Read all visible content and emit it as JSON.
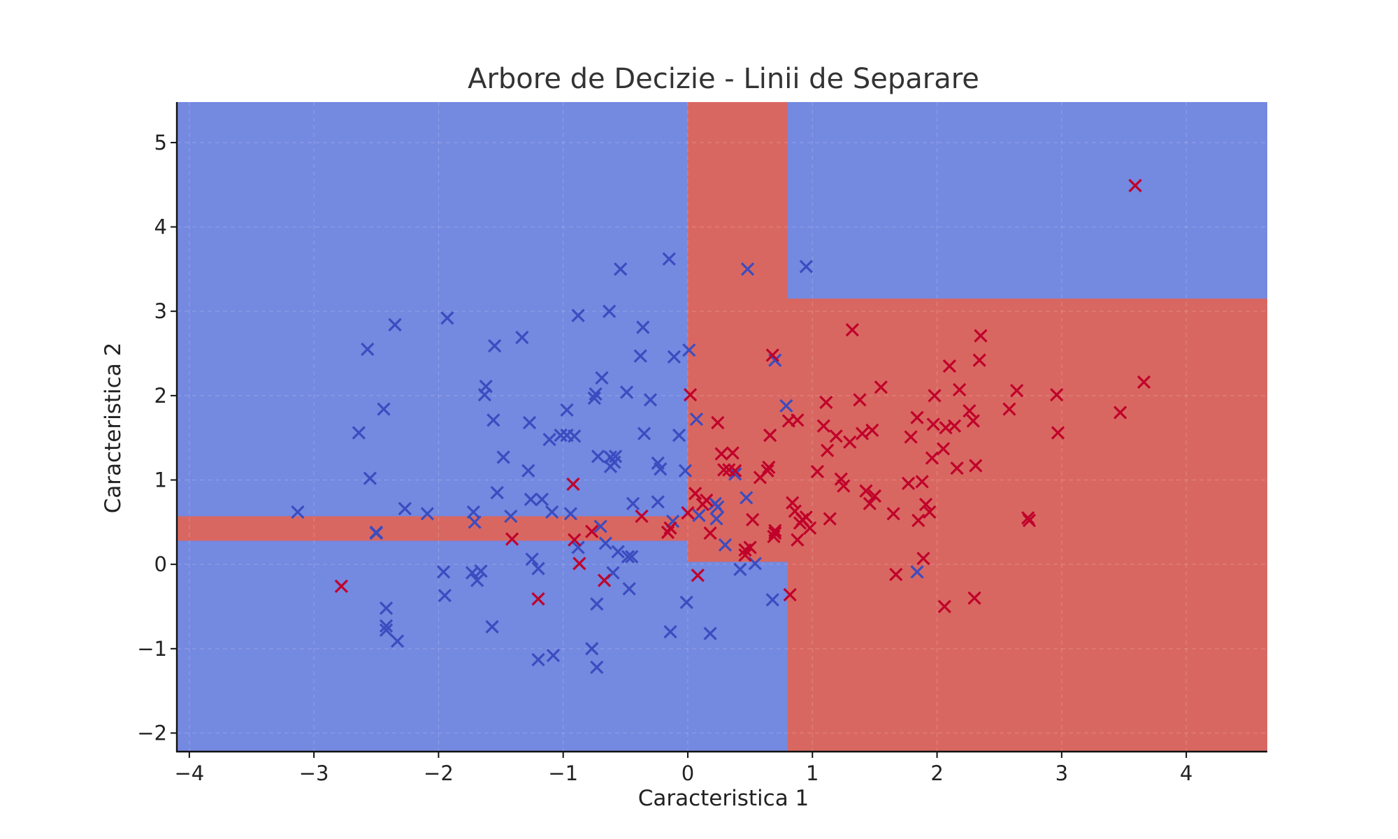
{
  "chart_data": {
    "type": "scatter",
    "title": "Arbore de Decizie - Linii de Separare",
    "xlabel": "Caracteristica 1",
    "ylabel": "Caracteristica 2",
    "xlim": [
      -4.1,
      4.65
    ],
    "ylim": [
      -2.22,
      5.48
    ],
    "x_ticks": [
      -4,
      -3,
      -2,
      -1,
      0,
      1,
      2,
      3,
      4
    ],
    "y_ticks": [
      -2,
      -1,
      0,
      1,
      2,
      3,
      4,
      5
    ],
    "x_tick_labels": [
      "−4",
      "−3",
      "−2",
      "−1",
      "0",
      "1",
      "2",
      "3",
      "4"
    ],
    "y_tick_labels": [
      "−2",
      "−1",
      "0",
      "1",
      "2",
      "3",
      "4",
      "5"
    ],
    "grid": true,
    "marker": "x",
    "colors": {
      "region_class_0": "#7489e0",
      "region_class_1": "#d96761",
      "points_class_0": "#3b4cc0",
      "points_class_1": "#c0002a"
    },
    "regions_class_1": [
      {
        "x": [
          0.0,
          0.8
        ],
        "y": [
          0.03,
          5.48
        ]
      },
      {
        "x": [
          0.8,
          4.65
        ],
        "y": [
          -2.22,
          3.15
        ]
      },
      {
        "x": [
          -4.1,
          0.0
        ],
        "y": [
          0.28,
          0.57
        ]
      }
    ],
    "series": [
      {
        "class": 0,
        "points": [
          [
            -3.13,
            0.62
          ],
          [
            -2.64,
            1.56
          ],
          [
            -2.57,
            2.55
          ],
          [
            -2.55,
            1.02
          ],
          [
            -2.5,
            0.37
          ],
          [
            -2.5,
            0.38
          ],
          [
            -2.44,
            1.84
          ],
          [
            -2.42,
            -0.52
          ],
          [
            -2.42,
            -0.73
          ],
          [
            -2.42,
            -0.78
          ],
          [
            -2.35,
            2.84
          ],
          [
            -2.33,
            -0.91
          ],
          [
            -2.27,
            0.66
          ],
          [
            -2.09,
            0.6
          ],
          [
            -1.96,
            -0.09
          ],
          [
            -1.95,
            -0.37
          ],
          [
            -1.93,
            2.92
          ],
          [
            -1.73,
            -0.1
          ],
          [
            -1.72,
            0.62
          ],
          [
            -1.71,
            0.5
          ],
          [
            -1.69,
            -0.19
          ],
          [
            -1.66,
            -0.08
          ],
          [
            -1.63,
            2.01
          ],
          [
            -1.62,
            2.11
          ],
          [
            -1.57,
            -0.74
          ],
          [
            -1.56,
            1.71
          ],
          [
            -1.55,
            2.59
          ],
          [
            -1.53,
            0.85
          ],
          [
            -1.48,
            1.27
          ],
          [
            -1.42,
            0.57
          ],
          [
            -1.33,
            2.69
          ],
          [
            -1.28,
            1.11
          ],
          [
            -1.27,
            1.68
          ],
          [
            -1.26,
            0.77
          ],
          [
            -1.25,
            0.06
          ],
          [
            -1.2,
            -0.05
          ],
          [
            -1.2,
            -1.13
          ],
          [
            -1.17,
            0.77
          ],
          [
            -1.11,
            1.48
          ],
          [
            -1.09,
            0.62
          ],
          [
            -1.08,
            -1.08
          ],
          [
            -1.02,
            1.53
          ],
          [
            -0.97,
            1.83
          ],
          [
            -0.97,
            1.53
          ],
          [
            -0.94,
            0.6
          ],
          [
            -0.91,
            1.52
          ],
          [
            -0.88,
            2.95
          ],
          [
            -0.88,
            0.2
          ],
          [
            -0.77,
            -1.0
          ],
          [
            -0.75,
            1.97
          ],
          [
            -0.74,
            2.02
          ],
          [
            -0.73,
            -0.47
          ],
          [
            -0.73,
            -1.22
          ],
          [
            -0.72,
            1.28
          ],
          [
            -0.7,
            0.45
          ],
          [
            -0.69,
            2.21
          ],
          [
            -0.66,
            0.25
          ],
          [
            -0.63,
            3.0
          ],
          [
            -0.62,
            1.16
          ],
          [
            -0.62,
            1.27
          ],
          [
            -0.6,
            -0.1
          ],
          [
            -0.59,
            1.21
          ],
          [
            -0.58,
            1.28
          ],
          [
            -0.56,
            0.15
          ],
          [
            -0.54,
            3.5
          ],
          [
            -0.49,
            2.04
          ],
          [
            -0.48,
            0.09
          ],
          [
            -0.47,
            -0.29
          ],
          [
            -0.45,
            0.09
          ],
          [
            -0.44,
            0.72
          ],
          [
            -0.38,
            2.47
          ],
          [
            -0.36,
            2.81
          ],
          [
            -0.35,
            1.55
          ],
          [
            -0.3,
            1.95
          ],
          [
            -0.24,
            1.2
          ],
          [
            -0.24,
            0.74
          ],
          [
            -0.22,
            1.13
          ],
          [
            -0.15,
            3.62
          ],
          [
            -0.14,
            -0.8
          ],
          [
            -0.12,
            0.51
          ],
          [
            -0.11,
            2.46
          ],
          [
            -0.07,
            1.53
          ],
          [
            -0.02,
            1.11
          ],
          [
            -0.01,
            -0.45
          ],
          [
            0.01,
            2.54
          ],
          [
            0.07,
            1.72
          ],
          [
            0.09,
            0.58
          ],
          [
            0.18,
            -0.82
          ],
          [
            0.22,
            0.72
          ],
          [
            0.23,
            0.54
          ],
          [
            0.24,
            0.68
          ],
          [
            0.3,
            0.23
          ],
          [
            0.38,
            1.07
          ],
          [
            0.42,
            -0.06
          ],
          [
            0.47,
            0.79
          ],
          [
            0.48,
            3.5
          ],
          [
            0.54,
            0.01
          ],
          [
            0.68,
            -0.42
          ],
          [
            0.7,
            2.42
          ],
          [
            0.79,
            1.88
          ],
          [
            0.95,
            3.53
          ],
          [
            1.84,
            -0.09
          ]
        ]
      },
      {
        "class": 1,
        "points": [
          [
            -2.78,
            -0.26
          ],
          [
            -1.41,
            0.3
          ],
          [
            -1.2,
            -0.41
          ],
          [
            -0.92,
            0.95
          ],
          [
            -0.91,
            0.29
          ],
          [
            -0.87,
            0.01
          ],
          [
            -0.77,
            0.39
          ],
          [
            -0.67,
            -0.19
          ],
          [
            -0.37,
            0.57
          ],
          [
            -0.16,
            0.38
          ],
          [
            -0.14,
            0.43
          ],
          [
            0.0,
            0.61
          ],
          [
            0.02,
            2.01
          ],
          [
            0.06,
            0.84
          ],
          [
            0.08,
            -0.13
          ],
          [
            0.12,
            0.71
          ],
          [
            0.15,
            0.76
          ],
          [
            0.18,
            0.37
          ],
          [
            0.24,
            1.68
          ],
          [
            0.27,
            1.31
          ],
          [
            0.29,
            1.12
          ],
          [
            0.33,
            1.12
          ],
          [
            0.36,
            1.32
          ],
          [
            0.38,
            1.11
          ],
          [
            0.46,
            0.11
          ],
          [
            0.46,
            0.17
          ],
          [
            0.5,
            0.2
          ],
          [
            0.52,
            0.53
          ],
          [
            0.58,
            1.03
          ],
          [
            0.64,
            1.11
          ],
          [
            0.65,
            1.15
          ],
          [
            0.66,
            1.53
          ],
          [
            0.68,
            2.48
          ],
          [
            0.69,
            0.33
          ],
          [
            0.7,
            0.4
          ],
          [
            0.7,
            0.37
          ],
          [
            0.81,
            1.7
          ],
          [
            0.82,
            -0.36
          ],
          [
            0.84,
            0.73
          ],
          [
            0.86,
            0.63
          ],
          [
            0.88,
            1.71
          ],
          [
            0.88,
            0.29
          ],
          [
            0.9,
            0.49
          ],
          [
            0.92,
            0.53
          ],
          [
            0.95,
            0.56
          ],
          [
            0.98,
            0.43
          ],
          [
            1.04,
            1.1
          ],
          [
            1.09,
            1.64
          ],
          [
            1.11,
            1.92
          ],
          [
            1.12,
            1.35
          ],
          [
            1.14,
            0.54
          ],
          [
            1.19,
            1.52
          ],
          [
            1.23,
            1.01
          ],
          [
            1.25,
            0.93
          ],
          [
            1.3,
            1.45
          ],
          [
            1.32,
            2.78
          ],
          [
            1.38,
            1.95
          ],
          [
            1.4,
            1.55
          ],
          [
            1.43,
            0.87
          ],
          [
            1.46,
            0.72
          ],
          [
            1.48,
            1.59
          ],
          [
            1.5,
            0.81
          ],
          [
            1.55,
            2.1
          ],
          [
            1.65,
            0.6
          ],
          [
            1.67,
            -0.12
          ],
          [
            1.77,
            0.96
          ],
          [
            1.79,
            1.51
          ],
          [
            1.84,
            1.74
          ],
          [
            1.85,
            0.52
          ],
          [
            1.88,
            0.98
          ],
          [
            1.89,
            0.07
          ],
          [
            1.91,
            0.71
          ],
          [
            1.94,
            0.62
          ],
          [
            1.96,
            1.26
          ],
          [
            1.97,
            1.66
          ],
          [
            1.98,
            2.0
          ],
          [
            2.05,
            1.37
          ],
          [
            2.06,
            -0.5
          ],
          [
            2.07,
            1.62
          ],
          [
            2.1,
            2.35
          ],
          [
            2.14,
            1.64
          ],
          [
            2.16,
            1.14
          ],
          [
            2.18,
            2.07
          ],
          [
            2.26,
            1.82
          ],
          [
            2.29,
            1.7
          ],
          [
            2.3,
            -0.4
          ],
          [
            2.31,
            1.17
          ],
          [
            2.34,
            2.42
          ],
          [
            2.35,
            2.71
          ],
          [
            2.58,
            1.84
          ],
          [
            2.64,
            2.06
          ],
          [
            2.73,
            0.55
          ],
          [
            2.74,
            0.52
          ],
          [
            2.96,
            2.01
          ],
          [
            2.97,
            1.56
          ],
          [
            3.47,
            1.8
          ],
          [
            3.59,
            4.49
          ],
          [
            3.66,
            2.16
          ]
        ]
      }
    ]
  }
}
